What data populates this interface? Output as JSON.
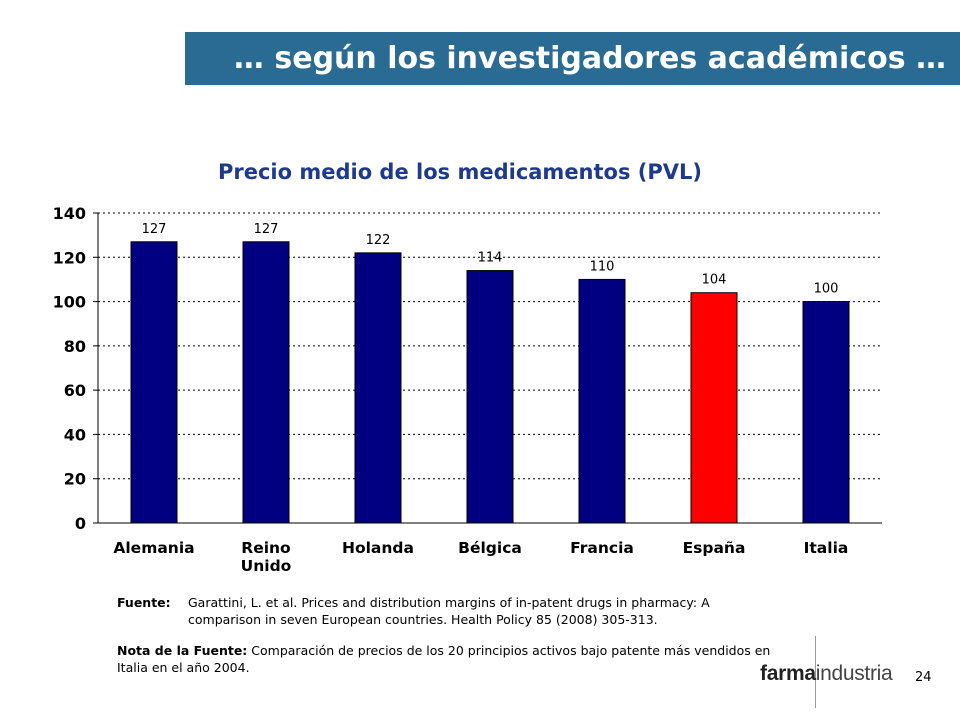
{
  "header": {
    "title": "… según los investigadores académicos …"
  },
  "chart_data": {
    "type": "bar",
    "title": "Precio medio de los medicamentos (PVL)",
    "categories": [
      [
        "Alemania"
      ],
      [
        "Reino",
        "Unido"
      ],
      [
        "Holanda"
      ],
      [
        "Bélgica"
      ],
      [
        "Francia"
      ],
      [
        "España"
      ],
      [
        "Italia"
      ]
    ],
    "values": [
      127,
      127,
      122,
      114,
      110,
      104,
      100
    ],
    "data_labels": [
      "127",
      "127",
      "122",
      "114",
      "110",
      "104",
      "100"
    ],
    "highlight_index": 5,
    "colors": {
      "bar": "#000080",
      "highlight": "#ff0000"
    },
    "ylim": [
      0,
      140
    ],
    "yticks": [
      0,
      20,
      40,
      60,
      80,
      100,
      120,
      140
    ],
    "xlabel": "",
    "ylabel": "",
    "grid": true
  },
  "source": {
    "label": "Fuente:",
    "lines": [
      "Garattini, L. et al. Prices and distribution margins of in-patent drugs in pharmacy: A",
      "comparison in seven European countries. Health Policy 85 (2008) 305-313."
    ]
  },
  "note": {
    "label": "Nota de la Fuente:",
    "text": " Comparación de precios de los 20 principios activos bajo patente más vendidos en Italia en el año 2004."
  },
  "footer": {
    "logo_bold": "farma",
    "logo_rest": "industria",
    "page_number": "24"
  }
}
